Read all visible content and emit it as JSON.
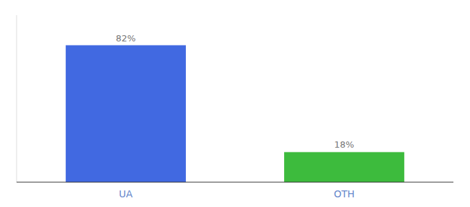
{
  "chart_data": {
    "type": "bar",
    "categories": [
      "UA",
      "OTH"
    ],
    "values": [
      82,
      18
    ],
    "value_labels": [
      "82%",
      "18%"
    ],
    "colors": [
      "#4169e1",
      "#3dbb3d"
    ],
    "ylim": [
      0,
      100
    ],
    "data_labels": true,
    "tick_labels": "x"
  }
}
